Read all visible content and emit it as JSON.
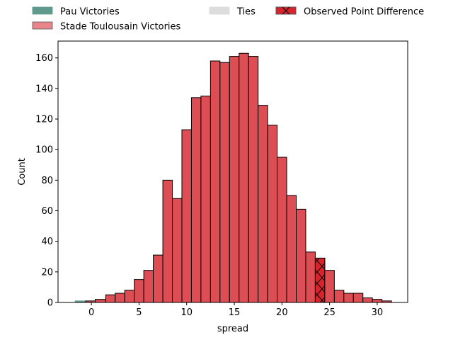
{
  "chart_data": {
    "type": "bar",
    "xlabel": "spread",
    "ylabel": "Count",
    "xlim": [
      -3.5,
      33.2
    ],
    "ylim": [
      0,
      171
    ],
    "xticks": [
      0,
      5,
      10,
      15,
      20,
      25,
      30
    ],
    "yticks": [
      0,
      20,
      40,
      60,
      80,
      100,
      120,
      140,
      160
    ],
    "grid": false,
    "legend_placement": "top, outside plot",
    "bin_width": 1,
    "observed_point_difference": 24,
    "colors": {
      "pau": "#5f9a8f",
      "toulouse": "#dc4d54",
      "toulouse_legend": "#e8848a",
      "ties": "#dddddd",
      "observed": "#d6232e",
      "edge": "#000000"
    },
    "series": [
      {
        "name": "Pau Victories",
        "bins": [
          {
            "x0": -1.7,
            "x1": -0.6,
            "value": 1
          }
        ]
      },
      {
        "name": "Ties",
        "bins": []
      },
      {
        "name": "Stade Toulousain Victories",
        "bins": [
          {
            "x0": -0.6,
            "x1": 0.4,
            "value": 1
          },
          {
            "x0": 0.4,
            "x1": 1.5,
            "value": 2
          },
          {
            "x0": 1.5,
            "x1": 2.5,
            "value": 5
          },
          {
            "x0": 2.5,
            "x1": 3.5,
            "value": 6
          },
          {
            "x0": 3.5,
            "x1": 4.5,
            "value": 8
          },
          {
            "x0": 4.5,
            "x1": 5.5,
            "value": 15
          },
          {
            "x0": 5.5,
            "x1": 6.5,
            "value": 21
          },
          {
            "x0": 6.5,
            "x1": 7.5,
            "value": 31
          },
          {
            "x0": 7.5,
            "x1": 8.5,
            "value": 80
          },
          {
            "x0": 8.5,
            "x1": 9.5,
            "value": 68
          },
          {
            "x0": 9.5,
            "x1": 10.5,
            "value": 113
          },
          {
            "x0": 10.5,
            "x1": 11.5,
            "value": 134
          },
          {
            "x0": 11.5,
            "x1": 12.5,
            "value": 135
          },
          {
            "x0": 12.5,
            "x1": 13.5,
            "value": 158
          },
          {
            "x0": 13.5,
            "x1": 14.5,
            "value": 157
          },
          {
            "x0": 14.5,
            "x1": 15.5,
            "value": 161
          },
          {
            "x0": 15.5,
            "x1": 16.5,
            "value": 163
          },
          {
            "x0": 16.5,
            "x1": 17.5,
            "value": 161
          },
          {
            "x0": 17.5,
            "x1": 18.5,
            "value": 129
          },
          {
            "x0": 18.5,
            "x1": 19.5,
            "value": 116
          },
          {
            "x0": 19.5,
            "x1": 20.5,
            "value": 95
          },
          {
            "x0": 20.5,
            "x1": 21.5,
            "value": 70
          },
          {
            "x0": 21.5,
            "x1": 22.5,
            "value": 61
          },
          {
            "x0": 22.5,
            "x1": 23.5,
            "value": 33
          },
          {
            "x0": 23.5,
            "x1": 24.5,
            "value": 29
          },
          {
            "x0": 24.5,
            "x1": 25.5,
            "value": 21
          },
          {
            "x0": 25.5,
            "x1": 26.5,
            "value": 8
          },
          {
            "x0": 26.5,
            "x1": 27.5,
            "value": 6
          },
          {
            "x0": 27.5,
            "x1": 28.5,
            "value": 6
          },
          {
            "x0": 28.5,
            "x1": 29.5,
            "value": 3
          },
          {
            "x0": 29.5,
            "x1": 30.5,
            "value": 2
          },
          {
            "x0": 30.5,
            "x1": 31.5,
            "value": 1
          }
        ]
      }
    ],
    "legend": [
      {
        "label": "Pau Victories",
        "color_key": "pau",
        "hatch": false
      },
      {
        "label": "Stade Toulousain Victories",
        "color_key": "toulouse_legend",
        "hatch": false
      },
      {
        "label": "Ties",
        "color_key": "ties",
        "hatch": false
      },
      {
        "label": "Observed Point Difference",
        "color_key": "observed",
        "hatch": true
      }
    ]
  }
}
